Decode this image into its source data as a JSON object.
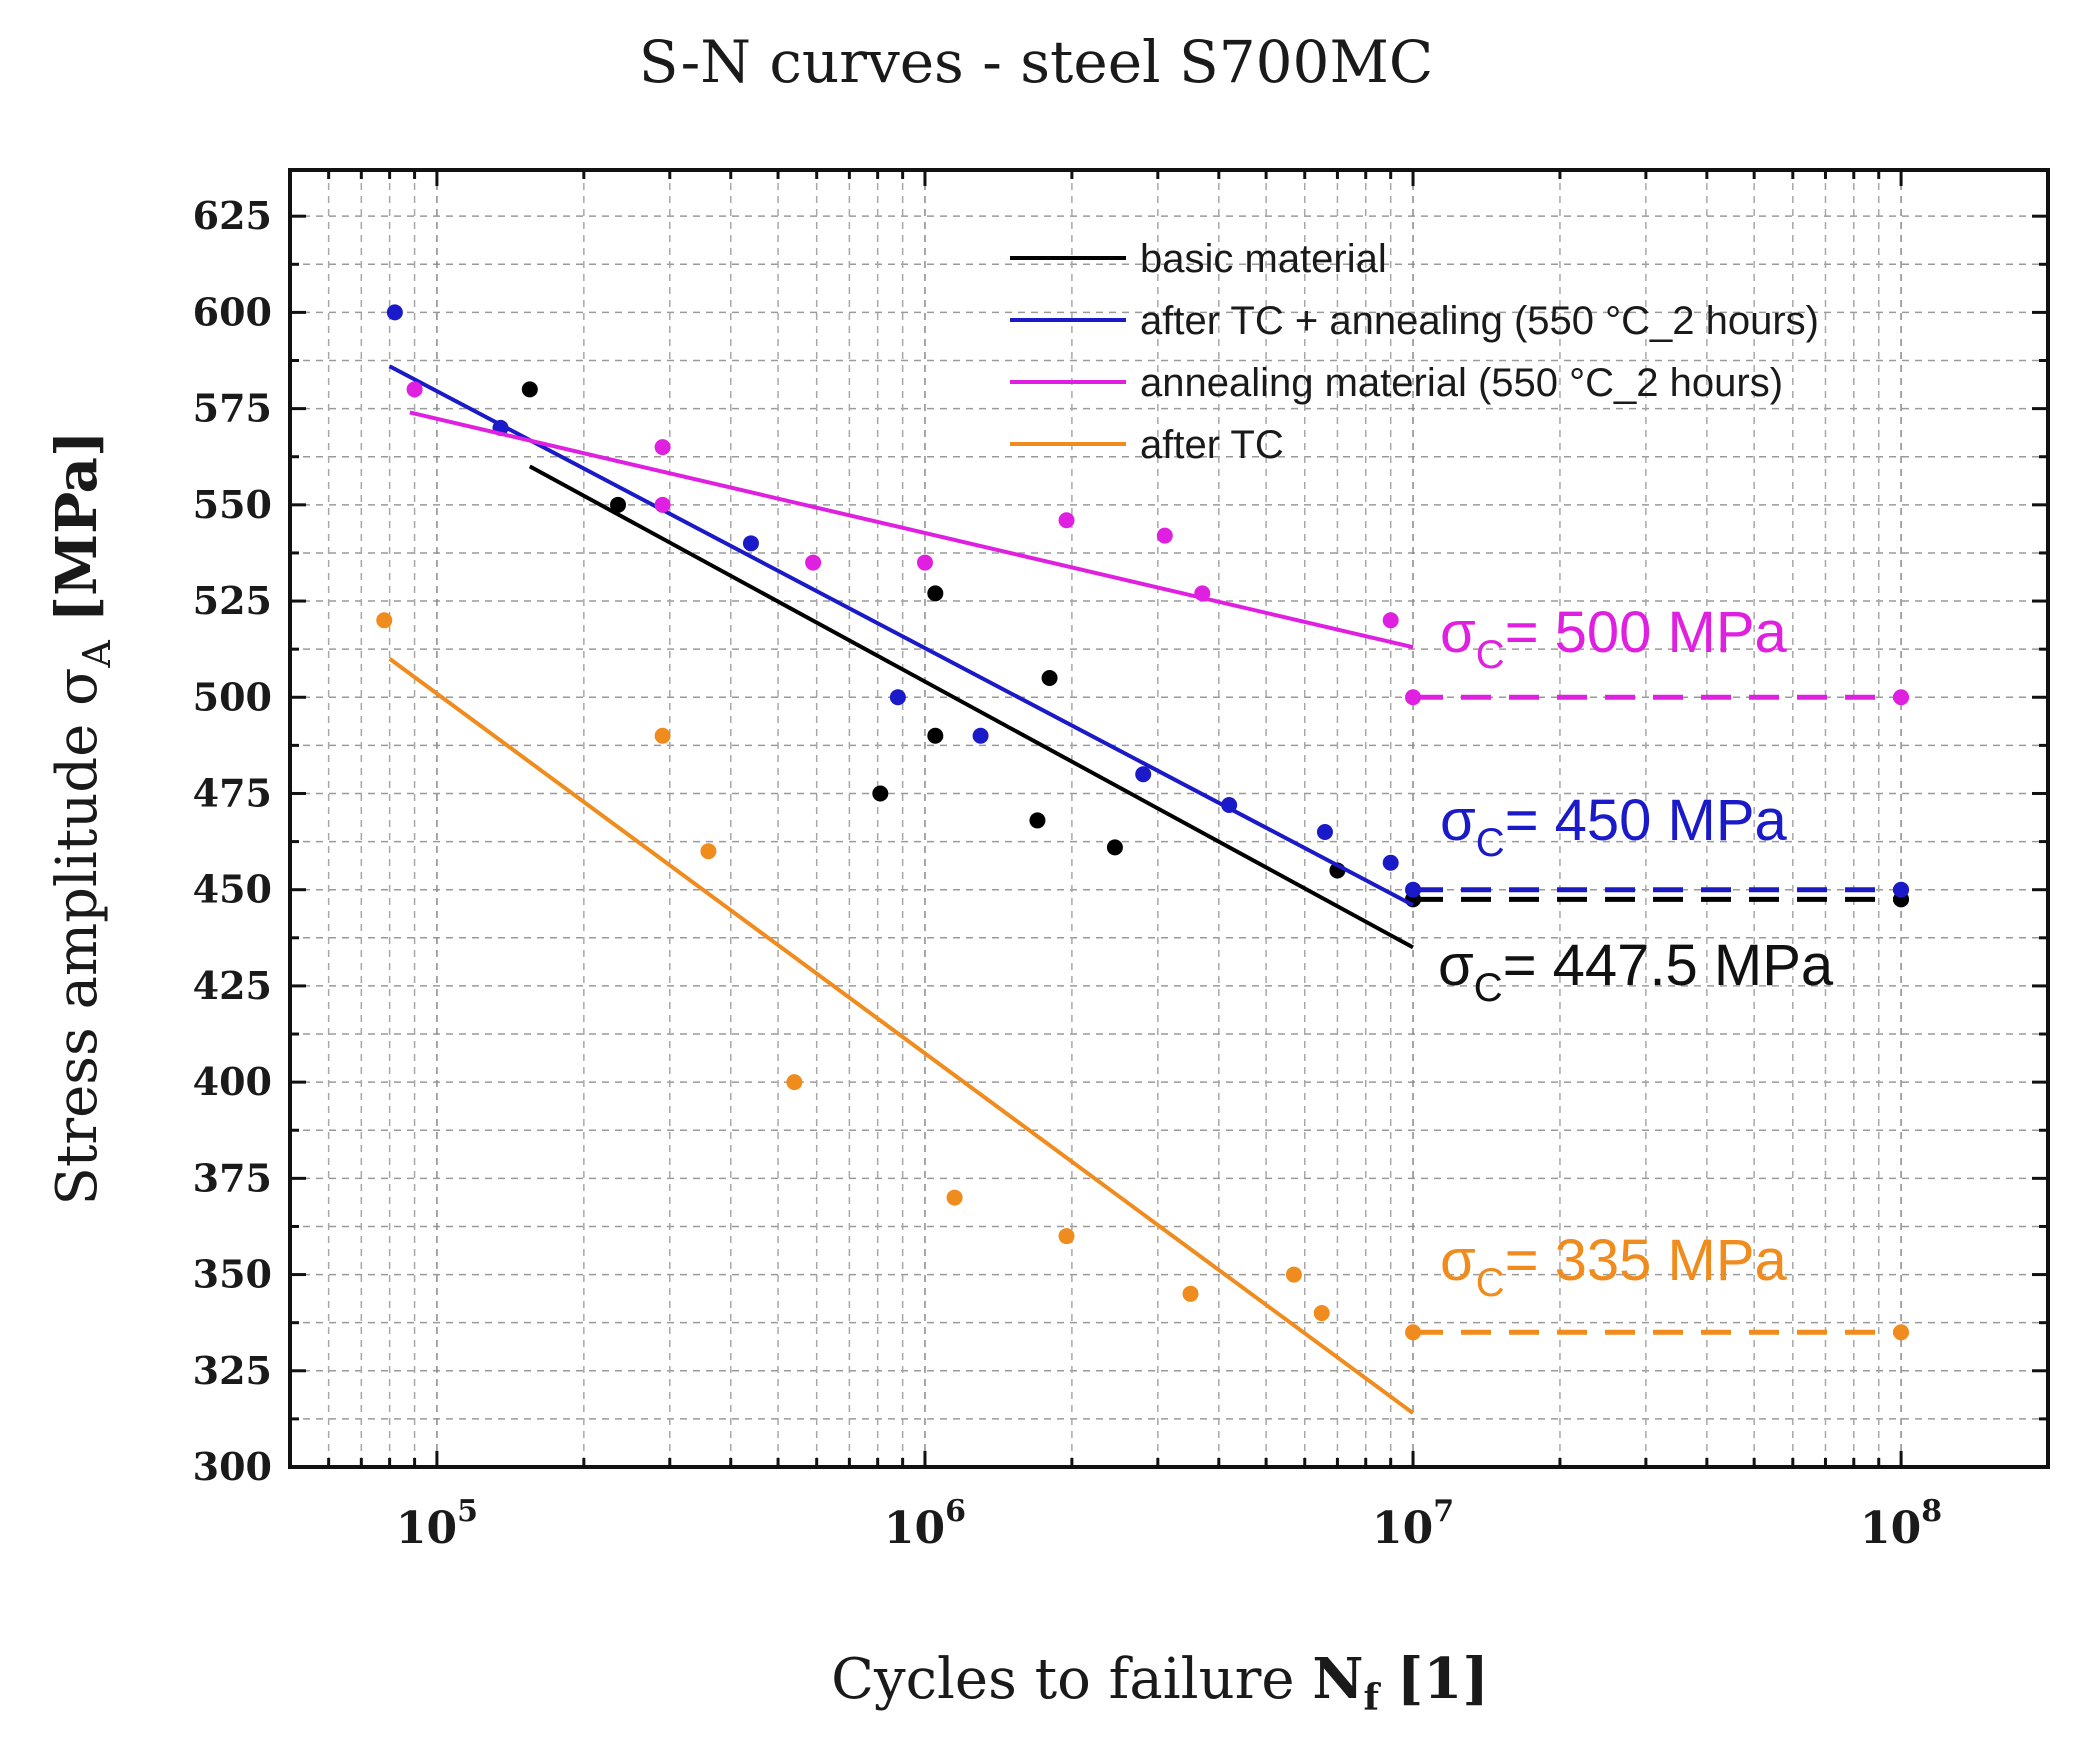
{
  "chart_data": {
    "type": "scatter",
    "title": "S-N curves - steel S700MC",
    "xlabel": "Cycles to failure",
    "xlabel_symbol": "N",
    "xlabel_sub": "f",
    "xlabel_unit": "[1]",
    "ylabel": "Stress amplitude σ",
    "ylabel_sub": "A",
    "ylabel_unit": "[MPa]",
    "x_scale": "log",
    "xlim": [
      50000,
      200000000
    ],
    "ylim": [
      300,
      637
    ],
    "y_ticks": [
      300,
      325,
      350,
      375,
      400,
      425,
      450,
      475,
      500,
      525,
      550,
      575,
      600,
      625
    ],
    "y_tick_labels": [
      "300",
      "325",
      "350",
      "375",
      "400",
      "425",
      "450",
      "475",
      "500",
      "525",
      "550",
      "575",
      "600",
      "625"
    ],
    "x_major_ticks": [
      {
        "value": 100000,
        "base": "10",
        "exp": "5"
      },
      {
        "value": 1000000,
        "base": "10",
        "exp": "6"
      },
      {
        "value": 10000000,
        "base": "10",
        "exp": "7"
      },
      {
        "value": 100000000,
        "base": "10",
        "exp": "8"
      }
    ],
    "grid": true,
    "legend_position": "top-right",
    "series": [
      {
        "name": "basic material",
        "color": "#000000",
        "points": [
          [
            155000,
            580
          ],
          [
            235000,
            550
          ],
          [
            1050000,
            527
          ],
          [
            1800000,
            505
          ],
          [
            810000,
            475
          ],
          [
            1050000,
            490
          ],
          [
            1700000,
            468
          ],
          [
            2450000,
            461
          ],
          [
            7000000,
            455
          ],
          [
            10000000,
            447.5
          ],
          [
            100000000,
            447.5
          ]
        ],
        "fit": [
          [
            155000,
            560
          ],
          [
            10000000,
            435
          ]
        ],
        "endurance_line": [
          [
            10000000,
            447.5
          ],
          [
            100000000,
            447.5
          ]
        ],
        "endurance_label": {
          "sigma": "σ",
          "sub": "C",
          "text": "= 447.5 MPa",
          "value": 447.5
        }
      },
      {
        "name": "after TC + annealing (550 °C_2 hours)",
        "color": "#1a1ac8",
        "points": [
          [
            82000,
            600
          ],
          [
            135000,
            570
          ],
          [
            440000,
            540
          ],
          [
            880000,
            500
          ],
          [
            1300000,
            490
          ],
          [
            2800000,
            480
          ],
          [
            4200000,
            472
          ],
          [
            6600000,
            465
          ],
          [
            9000000,
            457
          ],
          [
            10000000,
            450
          ],
          [
            100000000,
            450
          ]
        ],
        "fit": [
          [
            80000,
            586
          ],
          [
            10000000,
            446
          ]
        ],
        "endurance_line": [
          [
            10000000,
            450
          ],
          [
            100000000,
            450
          ]
        ],
        "endurance_label": {
          "sigma": "σ",
          "sub": "C",
          "text": "= 450 MPa",
          "value": 450
        }
      },
      {
        "name": "annealing material (550 °C_2 hours)",
        "color": "#e020e0",
        "points": [
          [
            90000,
            580
          ],
          [
            290000,
            565
          ],
          [
            290000,
            550
          ],
          [
            590000,
            535
          ],
          [
            1000000,
            535
          ],
          [
            1950000,
            546
          ],
          [
            3100000,
            542
          ],
          [
            3700000,
            527
          ],
          [
            9000000,
            520
          ],
          [
            10000000,
            500
          ],
          [
            100000000,
            500
          ]
        ],
        "fit": [
          [
            88000,
            574
          ],
          [
            10000000,
            513
          ]
        ],
        "endurance_line": [
          [
            10000000,
            500
          ],
          [
            100000000,
            500
          ]
        ],
        "endurance_label": {
          "sigma": "σ",
          "sub": "C",
          "text": "= 500 MPa",
          "value": 500
        }
      },
      {
        "name": "after TC",
        "color": "#f08c1e",
        "points": [
          [
            78000,
            520
          ],
          [
            290000,
            490
          ],
          [
            360000,
            460
          ],
          [
            540000,
            400
          ],
          [
            1150000,
            370
          ],
          [
            1950000,
            360
          ],
          [
            3500000,
            345
          ],
          [
            5700000,
            350
          ],
          [
            6500000,
            340
          ],
          [
            10000000,
            335
          ],
          [
            100000000,
            335
          ]
        ],
        "fit": [
          [
            80000,
            510
          ],
          [
            10000000,
            314
          ]
        ],
        "endurance_line": [
          [
            10000000,
            335
          ],
          [
            100000000,
            335
          ]
        ],
        "endurance_label": {
          "sigma": "σ",
          "sub": "C",
          "text": "= 335 MPa",
          "value": 335
        }
      }
    ]
  }
}
